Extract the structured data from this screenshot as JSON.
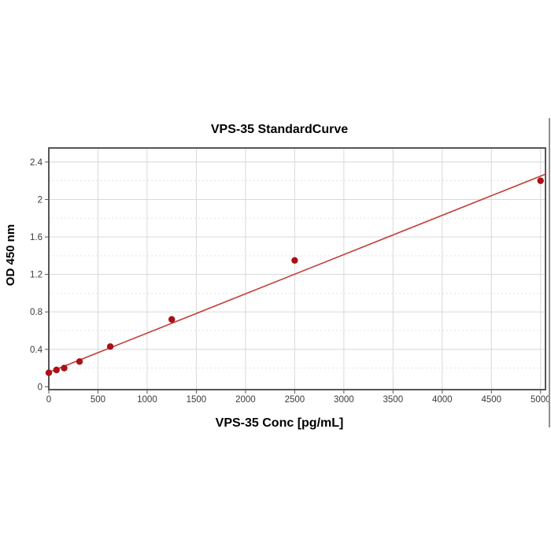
{
  "page": {
    "background": "#ffffff"
  },
  "chart": {
    "title": "VPS-35 StandardCurve",
    "x_axis_title": "VPS-35 Conc [pg/mL]",
    "y_axis_title": "OD 450 nm"
  },
  "chart_data": {
    "type": "scatter",
    "title": "VPS-35 StandardCurve",
    "xlabel": "VPS-35 Conc [pg/mL]",
    "ylabel": "OD 450 nm",
    "points": [
      {
        "x": 0,
        "y": 0.15
      },
      {
        "x": 78.125,
        "y": 0.18
      },
      {
        "x": 156.25,
        "y": 0.2
      },
      {
        "x": 312.5,
        "y": 0.27
      },
      {
        "x": 625,
        "y": 0.43
      },
      {
        "x": 1250,
        "y": 0.72
      },
      {
        "x": 2500,
        "y": 1.35
      },
      {
        "x": 5000,
        "y": 2.2
      }
    ],
    "trendline": {
      "type": "linear",
      "intercept": 0.155,
      "slope_per_unit": 0.000419
    },
    "x_ticks": [
      0,
      500,
      1000,
      1500,
      2000,
      2500,
      3000,
      3500,
      4000,
      4500,
      5000
    ],
    "x_tick_labels": [
      "0",
      "500",
      "1000",
      "1500",
      "2000",
      "2500",
      "3000",
      "3500",
      "4000",
      "4500",
      "5000"
    ],
    "y_ticks": [
      0,
      0.4,
      0.8,
      1.2,
      1.6,
      2,
      2.4
    ],
    "y_tick_labels": [
      "0",
      "0.4",
      "0.8",
      "1.2",
      "1.6",
      "2",
      "2.4"
    ],
    "y_minor_ticks": [
      0.2,
      0.6,
      1,
      1.4,
      1.8,
      2.2
    ],
    "xlim": [
      0,
      5000
    ],
    "ylim": [
      0,
      2.4
    ],
    "grid": {
      "major": "solid",
      "minor_horizontal": "dashed"
    },
    "legend": "none",
    "colors": {
      "point": "#a81116",
      "trend_line": "#c23b36",
      "grid_major": "#d8d8d8",
      "grid_minor": "#e3e3e3",
      "plot_border": "#55565a",
      "tick_label": "#3a3a3a",
      "title_text": "#000000",
      "edge_divider": "#8f8f8f"
    }
  }
}
